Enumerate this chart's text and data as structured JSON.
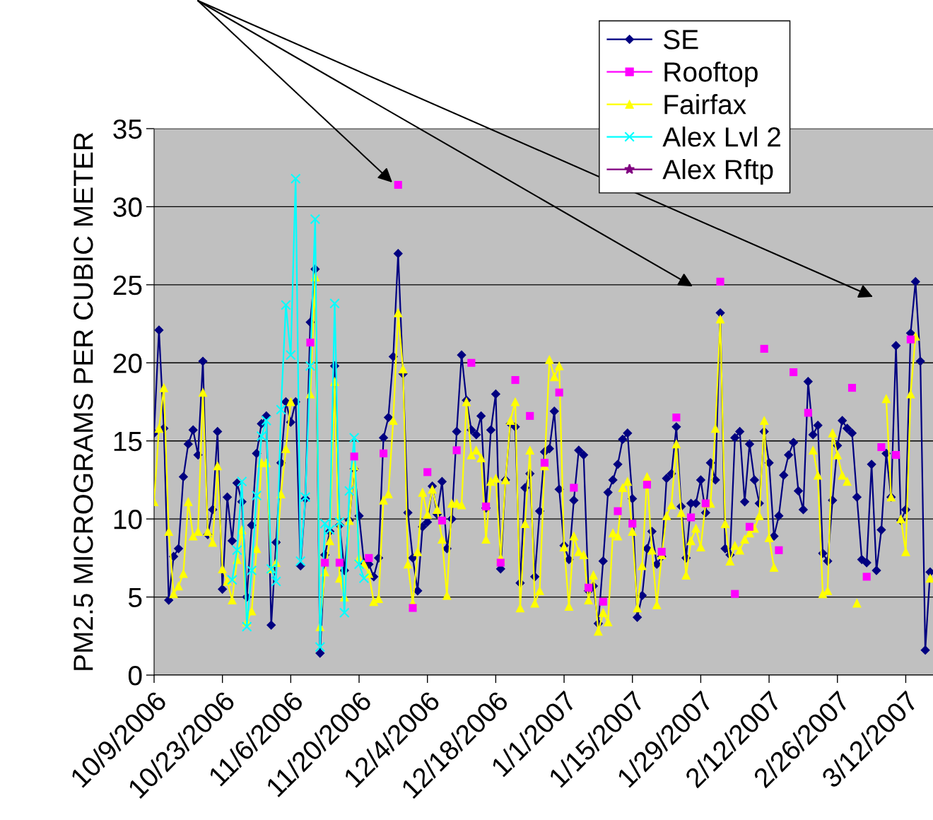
{
  "chart_data": {
    "type": "line",
    "ylabel": "PM2.5 MICROGRAMS PER CUBIC METER",
    "x": [
      "2006-10-09",
      "2006-10-10",
      "2006-10-11",
      "2006-10-12",
      "2006-10-13",
      "2006-10-14",
      "2006-10-15",
      "2006-10-16",
      "2006-10-17",
      "2006-10-18",
      "2006-10-19",
      "2006-10-20",
      "2006-10-21",
      "2006-10-22",
      "2006-10-23",
      "2006-10-24",
      "2006-10-25",
      "2006-10-26",
      "2006-10-27",
      "2006-10-28",
      "2006-10-29",
      "2006-10-30",
      "2006-10-31",
      "2006-11-01",
      "2006-11-02",
      "2006-11-03",
      "2006-11-04",
      "2006-11-05",
      "2006-11-06",
      "2006-11-07",
      "2006-11-08",
      "2006-11-09",
      "2006-11-10",
      "2006-11-11",
      "2006-11-12",
      "2006-11-13",
      "2006-11-14",
      "2006-11-15",
      "2006-11-16",
      "2006-11-17",
      "2006-11-18",
      "2006-11-19",
      "2006-11-20",
      "2006-11-21",
      "2006-11-22",
      "2006-11-23",
      "2006-11-24",
      "2006-11-25",
      "2006-11-26",
      "2006-11-27",
      "2006-11-28",
      "2006-11-29",
      "2006-11-30",
      "2006-12-01",
      "2006-12-02",
      "2006-12-03",
      "2006-12-04",
      "2006-12-05",
      "2006-12-06",
      "2006-12-07",
      "2006-12-08",
      "2006-12-09",
      "2006-12-10",
      "2006-12-11",
      "2006-12-12",
      "2006-12-13",
      "2006-12-14",
      "2006-12-15",
      "2006-12-16",
      "2006-12-17",
      "2006-12-18",
      "2006-12-19",
      "2006-12-20",
      "2006-12-21",
      "2006-12-22",
      "2006-12-23",
      "2006-12-24",
      "2006-12-25",
      "2006-12-26",
      "2006-12-27",
      "2006-12-28",
      "2006-12-29",
      "2006-12-30",
      "2006-12-31",
      "2007-01-01",
      "2007-01-02",
      "2007-01-03",
      "2007-01-04",
      "2007-01-05",
      "2007-01-06",
      "2007-01-07",
      "2007-01-08",
      "2007-01-09",
      "2007-01-10",
      "2007-01-11",
      "2007-01-12",
      "2007-01-13",
      "2007-01-14",
      "2007-01-15",
      "2007-01-16",
      "2007-01-17",
      "2007-01-18",
      "2007-01-19",
      "2007-01-20",
      "2007-01-21",
      "2007-01-22",
      "2007-01-23",
      "2007-01-24",
      "2007-01-25",
      "2007-01-26",
      "2007-01-27",
      "2007-01-28",
      "2007-01-29",
      "2007-01-30",
      "2007-01-31",
      "2007-02-01",
      "2007-02-02",
      "2007-02-03",
      "2007-02-04",
      "2007-02-05",
      "2007-02-06",
      "2007-02-07",
      "2007-02-08",
      "2007-02-09",
      "2007-02-10",
      "2007-02-11",
      "2007-02-12",
      "2007-02-13",
      "2007-02-14",
      "2007-02-15",
      "2007-02-16",
      "2007-02-17",
      "2007-02-18",
      "2007-02-19",
      "2007-02-20",
      "2007-02-21",
      "2007-02-22",
      "2007-02-23",
      "2007-02-24",
      "2007-02-25",
      "2007-02-26",
      "2007-02-27",
      "2007-02-28",
      "2007-03-01",
      "2007-03-02",
      "2007-03-03",
      "2007-03-04",
      "2007-03-05",
      "2007-03-06",
      "2007-03-07",
      "2007-03-08",
      "2007-03-09",
      "2007-03-10",
      "2007-03-11",
      "2007-03-12",
      "2007-03-13",
      "2007-03-14",
      "2007-03-15",
      "2007-03-16",
      "2007-03-17"
    ],
    "series": [
      {
        "name": "SE",
        "color": "#000080",
        "marker": "diamond",
        "values": [
          15.5,
          22.1,
          15.8,
          4.8,
          7.6,
          8.1,
          12.7,
          14.8,
          15.7,
          14.1,
          20.1,
          9.0,
          10.6,
          15.6,
          5.5,
          11.4,
          8.6,
          12.3,
          11.1,
          5.0,
          9.6,
          14.2,
          16.1,
          16.6,
          3.2,
          8.5,
          13.6,
          17.5,
          16.2,
          17.5,
          7.0,
          11.3,
          22.6,
          26.0,
          1.4,
          7.7,
          9.2,
          19.8,
          9.6,
          6.7,
          9.9,
          13.2,
          10.2,
          7.2,
          7.1,
          6.3,
          7.5,
          15.2,
          16.5,
          20.4,
          27.0,
          19.3,
          10.4,
          7.5,
          5.4,
          9.5,
          9.8,
          12.1,
          10.3,
          12.4,
          8.1,
          10.0,
          15.6,
          20.5,
          17.6,
          15.7,
          15.4,
          16.6,
          10.7,
          15.7,
          18.0,
          6.8,
          12.5,
          16.1,
          15.9,
          5.9,
          12.0,
          12.9,
          6.3,
          10.5,
          14.3,
          14.5,
          16.9,
          11.9,
          8.3,
          7.4,
          11.2,
          14.4,
          14.1,
          5.4,
          5.7,
          3.3,
          7.3,
          11.7,
          12.5,
          13.5,
          15.1,
          15.5,
          11.3,
          3.7,
          5.1,
          8.1,
          9.2,
          7.1,
          7.6,
          12.6,
          12.9,
          15.9,
          10.8,
          7.5,
          11.0,
          11.0,
          12.5,
          10.4,
          13.6,
          12.5,
          23.2,
          8.1,
          7.7,
          15.2,
          15.6,
          11.1,
          14.8,
          12.5,
          11.0,
          15.6,
          13.6,
          8.9,
          10.2,
          12.8,
          14.1,
          14.9,
          11.8,
          10.6,
          18.8,
          15.4,
          16.0,
          7.8,
          7.3,
          11.2,
          14.7,
          16.3,
          15.8,
          15.5,
          11.4,
          7.4,
          7.2,
          13.5,
          6.7,
          9.3,
          14.2,
          11.4,
          21.1,
          9.9,
          10.6,
          21.9,
          25.2,
          20.1,
          1.6,
          6.6
        ]
      },
      {
        "name": "Rooftop",
        "type": "scatter",
        "color": "#ff00ff",
        "marker": "square",
        "values": [
          null,
          null,
          null,
          null,
          null,
          null,
          null,
          null,
          null,
          null,
          null,
          null,
          null,
          null,
          null,
          null,
          null,
          null,
          null,
          null,
          null,
          null,
          null,
          null,
          null,
          null,
          null,
          null,
          null,
          null,
          null,
          null,
          21.3,
          null,
          null,
          7.2,
          null,
          null,
          7.2,
          null,
          null,
          14.0,
          null,
          null,
          7.5,
          null,
          null,
          14.2,
          null,
          null,
          31.4,
          null,
          null,
          4.3,
          null,
          null,
          13.0,
          null,
          null,
          9.9,
          null,
          null,
          14.4,
          null,
          null,
          20.0,
          null,
          null,
          10.8,
          null,
          null,
          7.2,
          null,
          null,
          18.9,
          null,
          null,
          16.6,
          null,
          null,
          13.6,
          null,
          null,
          18.1,
          null,
          null,
          12.0,
          null,
          null,
          5.6,
          null,
          null,
          4.7,
          null,
          null,
          10.5,
          null,
          null,
          9.7,
          null,
          null,
          12.2,
          null,
          null,
          7.9,
          null,
          null,
          16.5,
          null,
          null,
          10.1,
          null,
          null,
          11.0,
          null,
          null,
          25.2,
          null,
          null,
          5.2,
          null,
          null,
          9.5,
          null,
          null,
          20.9,
          null,
          null,
          8.0,
          null,
          null,
          19.4,
          null,
          null,
          16.8,
          null,
          null,
          null,
          null,
          null,
          null,
          null,
          null,
          18.4,
          null,
          null,
          6.3,
          null,
          null,
          14.6,
          null,
          null,
          14.1,
          null,
          null,
          21.5,
          null,
          null,
          null,
          null
        ]
      },
      {
        "name": "Fairfax",
        "color": "#ffff00",
        "marker": "triangle",
        "values": [
          11.1,
          15.8,
          18.4,
          9.2,
          5.2,
          5.7,
          6.5,
          11.1,
          8.9,
          9.2,
          18.1,
          9.2,
          8.5,
          13.4,
          6.8,
          6.0,
          4.8,
          7.4,
          9.3,
          3.4,
          4.1,
          8.1,
          13.6,
          13.6,
          6.8,
          7.2,
          11.6,
          14.5,
          17.5,
          null,
          null,
          null,
          18.0,
          25.5,
          3.1,
          6.6,
          8.6,
          18.8,
          6.2,
          5.0,
          9.9,
          13.4,
          7.5,
          7.1,
          6.5,
          4.7,
          4.9,
          11.2,
          11.6,
          16.3,
          23.2,
          19.6,
          7.1,
          4.6,
          7.9,
          11.7,
          10.3,
          11.9,
          10.6,
          8.7,
          5.1,
          11.0,
          11.0,
          10.9,
          17.5,
          14.1,
          14.4,
          13.9,
          8.7,
          12.4,
          12.6,
          7.5,
          12.5,
          16.3,
          17.5,
          4.3,
          9.7,
          14.4,
          4.6,
          5.4,
          13.4,
          20.2,
          19.1,
          19.8,
          8.2,
          4.4,
          8.9,
          7.9,
          7.7,
          4.8,
          6.4,
          2.8,
          4.0,
          3.4,
          9.1,
          8.9,
          12.0,
          12.4,
          9.2,
          4.3,
          7.0,
          12.7,
          8.0,
          4.5,
          7.7,
          10.2,
          10.9,
          14.8,
          10.4,
          6.4,
          8.6,
          9.4,
          8.2,
          11.0,
          11.0,
          15.8,
          22.8,
          9.7,
          7.3,
          8.3,
          8.0,
          8.7,
          9.1,
          9.4,
          10.2,
          16.3,
          8.8,
          6.9,
          null,
          null,
          null,
          null,
          null,
          null,
          null,
          14.4,
          12.8,
          5.2,
          5.4,
          15.5,
          14.1,
          12.8,
          12.4,
          null,
          4.6,
          null,
          null,
          null,
          null,
          null,
          17.7,
          11.4,
          null,
          10.0,
          7.9,
          18.0,
          21.7,
          null,
          null,
          6.2
        ]
      },
      {
        "name": "Alex Lvl 2",
        "color": "#00ffff",
        "marker": "cross",
        "values": [
          null,
          null,
          null,
          null,
          null,
          null,
          null,
          null,
          null,
          null,
          null,
          null,
          null,
          null,
          null,
          null,
          6.1,
          8.0,
          12.4,
          3.1,
          6.7,
          11.5,
          15.3,
          16.3,
          6.8,
          6.0,
          17.0,
          23.7,
          20.5,
          31.8,
          7.3,
          11.4,
          19.8,
          29.2,
          1.8,
          9.7,
          9.3,
          23.8,
          9.8,
          4.0,
          11.8,
          15.2,
          7.1,
          6.2,
          null,
          null,
          null,
          null,
          null,
          null,
          null,
          null,
          null,
          null,
          null,
          null,
          null,
          null,
          null,
          null,
          null,
          null,
          null,
          null,
          null,
          null,
          null,
          null,
          null,
          null,
          null,
          null,
          null,
          null,
          null,
          null,
          null,
          null,
          null,
          null,
          null,
          null,
          null,
          null,
          null,
          null,
          null,
          null,
          null,
          null,
          null,
          null,
          null,
          null,
          null,
          null,
          null,
          null,
          null,
          null,
          null,
          null,
          null,
          null,
          null,
          null,
          null,
          null,
          null,
          null,
          null,
          null,
          null,
          null,
          null,
          null,
          null,
          null,
          null,
          null,
          null,
          null,
          null,
          null,
          null,
          null,
          null,
          null,
          null,
          null,
          null,
          null,
          null,
          null,
          null,
          null,
          null,
          null,
          null,
          null,
          null,
          null,
          null,
          null,
          null,
          null,
          null,
          null,
          null,
          null,
          null,
          null,
          null,
          null,
          null,
          null,
          null,
          null,
          null,
          null
        ]
      },
      {
        "name": "Alex Rftp",
        "color": "#800080",
        "marker": "star",
        "values": [
          null,
          null,
          null,
          null,
          null,
          null,
          null,
          null,
          null,
          null,
          null,
          null,
          null,
          null,
          null,
          null,
          null,
          null,
          null,
          null,
          null,
          null,
          null,
          null,
          null,
          null,
          null,
          null,
          null,
          null,
          null,
          null,
          null,
          null,
          null,
          null,
          null,
          null,
          null,
          null,
          null,
          null,
          null,
          null,
          null,
          null,
          null,
          null,
          null,
          null,
          null,
          null,
          null,
          null,
          null,
          null,
          null,
          null,
          null,
          null,
          null,
          null,
          null,
          null,
          null,
          null,
          null,
          null,
          null,
          null,
          null,
          null,
          null,
          null,
          null,
          null,
          null,
          null,
          null,
          null,
          null,
          null,
          null,
          null,
          null,
          null,
          null,
          null,
          null,
          null,
          null,
          null,
          null,
          null,
          null,
          null,
          null,
          null,
          null,
          null,
          null,
          null,
          null,
          null,
          null,
          null,
          null,
          null,
          null,
          null,
          null,
          null,
          null,
          null,
          null,
          null,
          null,
          null,
          null,
          null,
          null,
          null,
          null,
          null,
          null,
          null,
          null,
          null,
          null,
          null,
          null,
          null,
          null,
          null,
          null,
          null,
          null,
          null,
          null,
          null,
          null,
          null,
          null,
          null,
          null,
          null,
          null,
          null,
          null,
          null,
          null,
          null,
          null,
          null,
          null,
          null,
          null,
          null,
          null,
          null
        ]
      }
    ],
    "xlim": [
      "2006-10-09",
      "2007-03-17T14:00"
    ],
    "xticks": [
      {
        "value": "2006-10-09",
        "label": "10/9/2006"
      },
      {
        "value": "2006-10-23",
        "label": "10/23/2006"
      },
      {
        "value": "2006-11-06",
        "label": "11/6/2006"
      },
      {
        "value": "2006-11-20",
        "label": "11/20/2006"
      },
      {
        "value": "2006-12-04",
        "label": "12/4/2006"
      },
      {
        "value": "2006-12-18",
        "label": "12/18/2006"
      },
      {
        "value": "2007-01-01",
        "label": "1/1/2007"
      },
      {
        "value": "2007-01-15",
        "label": "1/15/2007"
      },
      {
        "value": "2007-01-29",
        "label": "1/29/2007"
      },
      {
        "value": "2007-02-12",
        "label": "2/12/2007"
      },
      {
        "value": "2007-02-26",
        "label": "2/26/2007"
      },
      {
        "value": "2007-03-12",
        "label": "3/12/2007"
      }
    ],
    "ylim": [
      0,
      35
    ],
    "yticks": [
      0,
      5,
      10,
      15,
      20,
      25,
      30,
      35
    ],
    "grid": "y",
    "legend": "top right",
    "line_style": "solid"
  }
}
